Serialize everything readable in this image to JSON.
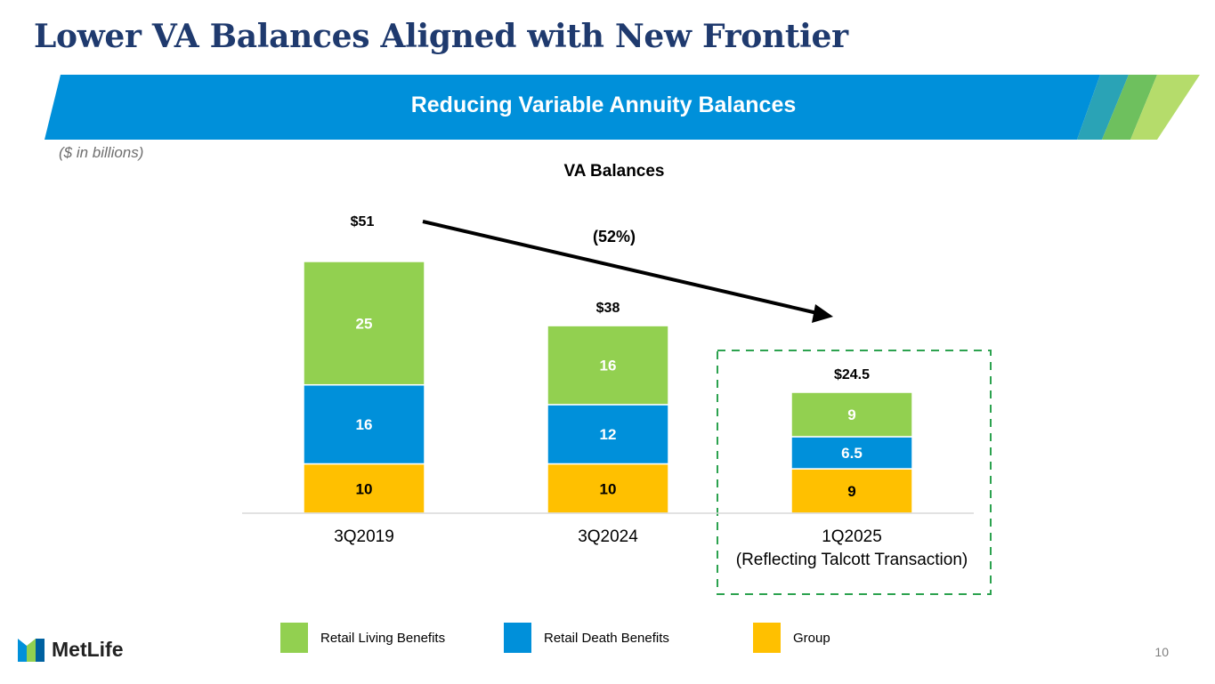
{
  "title": "Lower VA Balances Aligned with New Frontier",
  "banner": "Reducing Variable Annuity Balances",
  "units_note": "($ in billions)",
  "page_number": "10",
  "logo_text": "MetLife",
  "colors": {
    "retail_living": "#92d050",
    "retail_death": "#0090da",
    "group": "#ffc000",
    "banner_blue": "#0090da",
    "title_navy": "#1f3a6e",
    "highlight_box": "#2ca24f"
  },
  "chart_data": {
    "type": "bar",
    "stacked": true,
    "title": "VA Balances",
    "categories": [
      "3Q2019",
      "3Q2024",
      "1Q2025\n(Reflecting Talcott Transaction)"
    ],
    "series": [
      {
        "name": "Group",
        "key": "group",
        "values": [
          10,
          10,
          9
        ],
        "labels": [
          "10",
          "10",
          "9"
        ]
      },
      {
        "name": "Retail Death Benefits",
        "key": "retail_death",
        "values": [
          16,
          12,
          6.5
        ],
        "labels": [
          "16",
          "12",
          "6.5"
        ]
      },
      {
        "name": "Retail Living Benefits",
        "key": "retail_living",
        "values": [
          25,
          16,
          9
        ],
        "labels": [
          "25",
          "16",
          "9"
        ]
      }
    ],
    "totals": [
      "$51",
      "$38",
      "$24.5"
    ],
    "annotation": "(52%)",
    "highlight_category": 2,
    "ylim": [
      0,
      51
    ],
    "legend": [
      "Retail Living Benefits",
      "Retail Death Benefits",
      "Group"
    ]
  }
}
